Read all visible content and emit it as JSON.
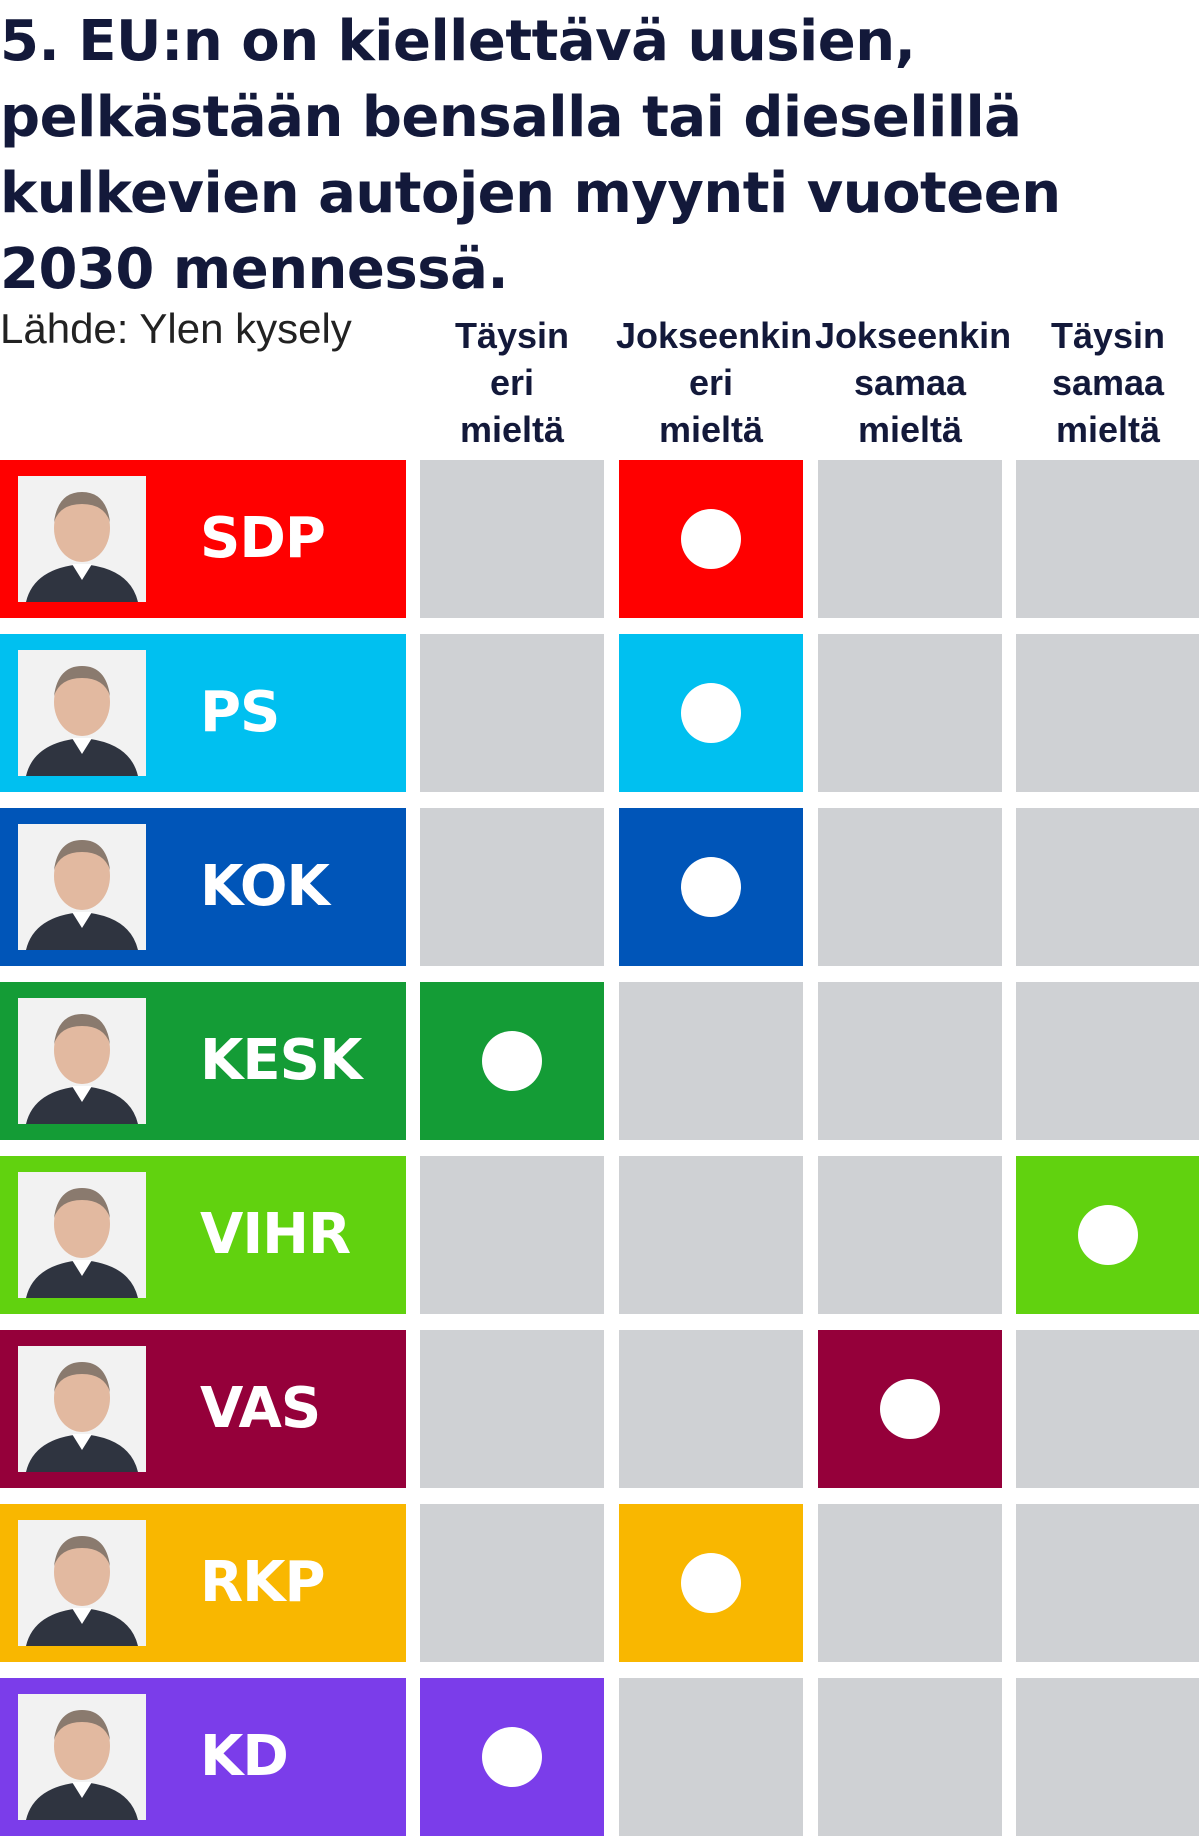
{
  "title": "5. EU:n on kiellettävä uusien, pelkästään bensalla tai dieselillä kulkevien autojen myynti vuoteen 2030 mennessä.",
  "source": "Lähde: Ylen kysely",
  "chart_data": {
    "type": "table",
    "columns": [
      {
        "lines": [
          "Täysin",
          "eri",
          "mieltä"
        ]
      },
      {
        "lines": [
          "Jokseenkin",
          "eri",
          "mieltä"
        ]
      },
      {
        "lines": [
          "Jokseenkin",
          "samaa",
          "mieltä"
        ]
      },
      {
        "lines": [
          "Täysin",
          "samaa",
          "mieltä"
        ]
      }
    ],
    "rows": [
      {
        "party": "SDP",
        "answer_index": 1,
        "color": "#ff0000"
      },
      {
        "party": "PS",
        "answer_index": 1,
        "color": "#00c0f0"
      },
      {
        "party": "KOK",
        "answer_index": 1,
        "color": "#0055b8"
      },
      {
        "party": "KESK",
        "answer_index": 0,
        "color": "#149c36"
      },
      {
        "party": "VIHR",
        "answer_index": 3,
        "color": "#61d20f"
      },
      {
        "party": "VAS",
        "answer_index": 2,
        "color": "#95003a"
      },
      {
        "party": "RKP",
        "answer_index": 1,
        "color": "#f9b700"
      },
      {
        "party": "KD",
        "answer_index": 0,
        "color": "#7b3dea"
      }
    ],
    "empty_cell_color": "#cfd1d4",
    "portrait_icon": "portrait-photo-icon"
  }
}
